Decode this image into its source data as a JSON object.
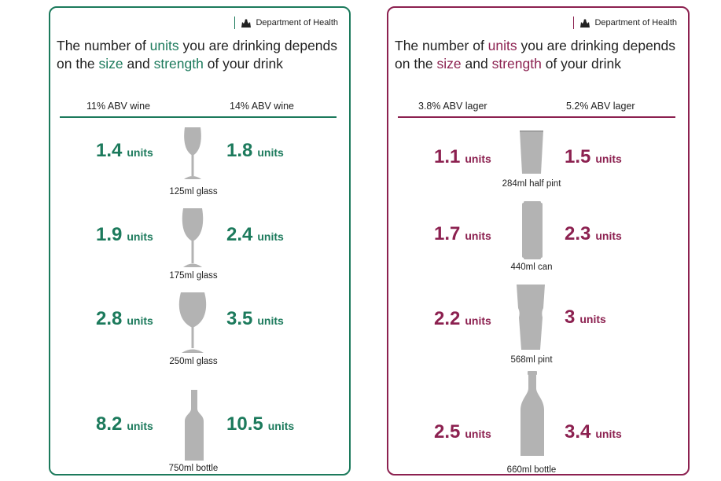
{
  "brand": {
    "department": "Department of Health"
  },
  "heading": {
    "part1": "The number of ",
    "units_word": "units",
    "part2": " you are drinking depends on the ",
    "size_word": "size",
    "part3": " and ",
    "strength_word": "strength",
    "part4": " of your drink"
  },
  "colors": {
    "wine_accent": "#1c7a5c",
    "lager_accent": "#8c2150",
    "vessel_grey": "#b3b3b3"
  },
  "wine": {
    "left_header": "11% ABV wine",
    "right_header": "14% ABV wine",
    "rows": [
      {
        "left_value": "1.4",
        "right_value": "1.8",
        "unit": "units",
        "caption": "125ml glass",
        "icon": "small-wine-glass-icon"
      },
      {
        "left_value": "1.9",
        "right_value": "2.4",
        "unit": "units",
        "caption": "175ml glass",
        "icon": "medium-wine-glass-icon"
      },
      {
        "left_value": "2.8",
        "right_value": "3.5",
        "unit": "units",
        "caption": "250ml glass",
        "icon": "large-wine-glass-icon"
      },
      {
        "left_value": "8.2",
        "right_value": "10.5",
        "unit": "units",
        "caption": "750ml bottle",
        "icon": "wine-bottle-icon"
      }
    ]
  },
  "lager": {
    "left_header": "3.8% ABV lager",
    "right_header": "5.2% ABV lager",
    "rows": [
      {
        "left_value": "1.1",
        "right_value": "1.5",
        "unit": "units",
        "caption": "284ml half pint",
        "icon": "half-pint-glass-icon"
      },
      {
        "left_value": "1.7",
        "right_value": "2.3",
        "unit": "units",
        "caption": "440ml can",
        "icon": "can-icon"
      },
      {
        "left_value": "2.2",
        "right_value": "3",
        "unit": "units",
        "caption": "568ml pint",
        "icon": "pint-glass-icon"
      },
      {
        "left_value": "2.5",
        "right_value": "3.4",
        "unit": "units",
        "caption": "660ml bottle",
        "icon": "beer-bottle-icon"
      }
    ]
  }
}
